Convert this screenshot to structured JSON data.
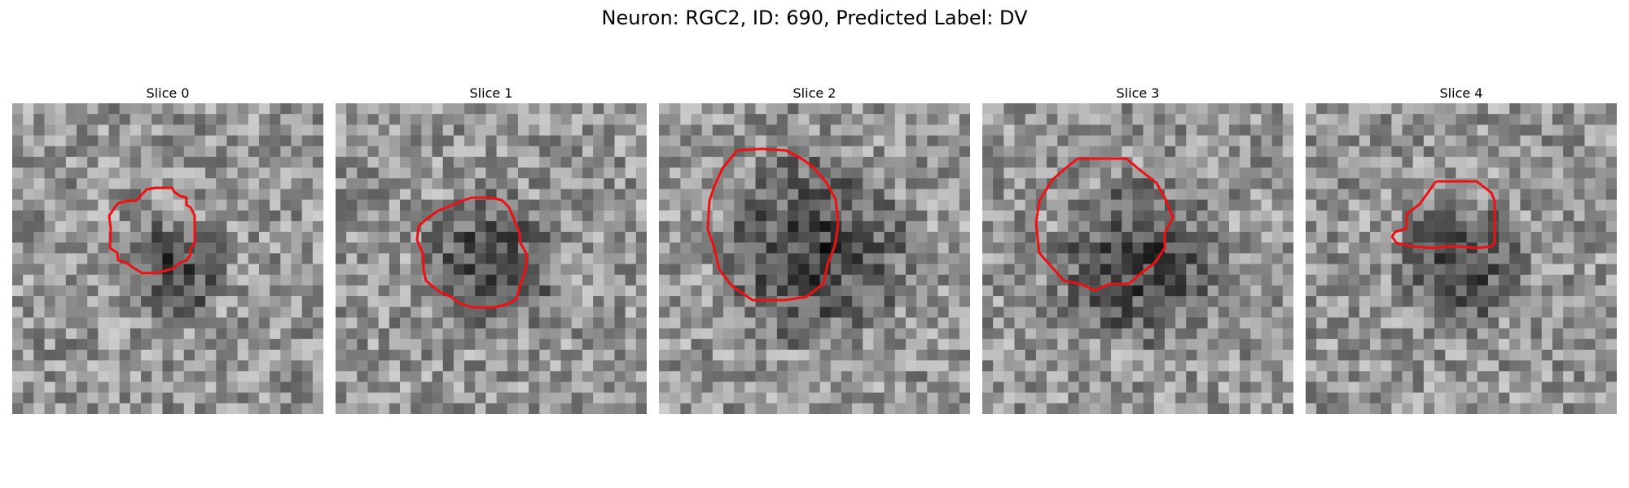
{
  "figure": {
    "title": "Neuron: RGC2, ID: 690, Predicted Label: DV"
  },
  "panels": [
    {
      "title": "Slice 0"
    },
    {
      "title": "Slice 1"
    },
    {
      "title": "Slice 2"
    },
    {
      "title": "Slice 3"
    },
    {
      "title": "Slice 4"
    }
  ],
  "colors": {
    "outline": "#ee1111",
    "background": "#ffffff"
  }
}
